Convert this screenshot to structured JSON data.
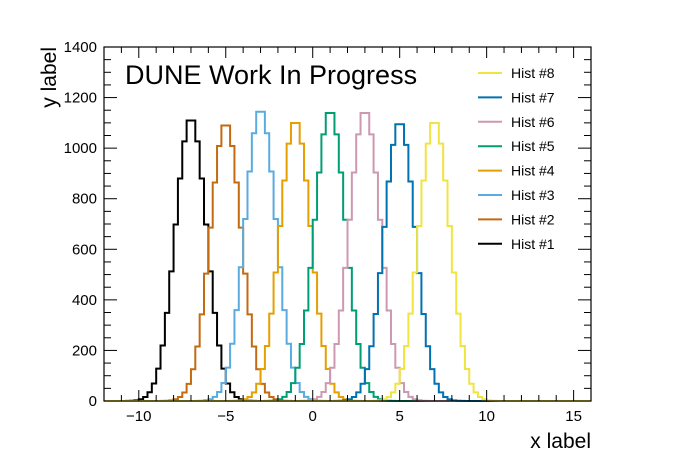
{
  "chart_data": {
    "type": "histogram",
    "banner": "DUNE Work In Progress",
    "xlabel": "x label",
    "ylabel": "y label",
    "xlim": [
      -12,
      16
    ],
    "ylim": [
      0,
      1400
    ],
    "bin_width": 0.25,
    "x_ticks": [
      -10,
      -5,
      0,
      5,
      10,
      15
    ],
    "x_tick_labels": [
      "−10",
      "−5",
      "0",
      "5",
      "10",
      "15"
    ],
    "y_ticks": [
      0,
      200,
      400,
      600,
      800,
      1000,
      1200,
      1400
    ],
    "y_tick_labels": [
      "0",
      "200",
      "400",
      "600",
      "800",
      "1000",
      "1200",
      "1400"
    ],
    "legend_position": "top-right",
    "series": [
      {
        "name": "Hist #1",
        "color": "#000000",
        "mean": -7.0,
        "sigma": 0.9,
        "peak": 1120
      },
      {
        "name": "Hist #2",
        "color": "#c46a11",
        "mean": -5.0,
        "sigma": 0.9,
        "peak": 1100
      },
      {
        "name": "Hist #3",
        "color": "#5aace0",
        "mean": -3.0,
        "sigma": 0.9,
        "peak": 1155
      },
      {
        "name": "Hist #4",
        "color": "#e69f00",
        "mean": -1.0,
        "sigma": 0.9,
        "peak": 1110
      },
      {
        "name": "Hist #5",
        "color": "#009e73",
        "mean": 1.0,
        "sigma": 0.9,
        "peak": 1150
      },
      {
        "name": "Hist #6",
        "color": "#cc99b0",
        "mean": 3.0,
        "sigma": 0.9,
        "peak": 1150
      },
      {
        "name": "Hist #7",
        "color": "#0072b2",
        "mean": 5.0,
        "sigma": 0.9,
        "peak": 1105
      },
      {
        "name": "Hist #8",
        "color": "#f0e442",
        "mean": 7.0,
        "sigma": 0.9,
        "peak": 1110
      }
    ]
  }
}
